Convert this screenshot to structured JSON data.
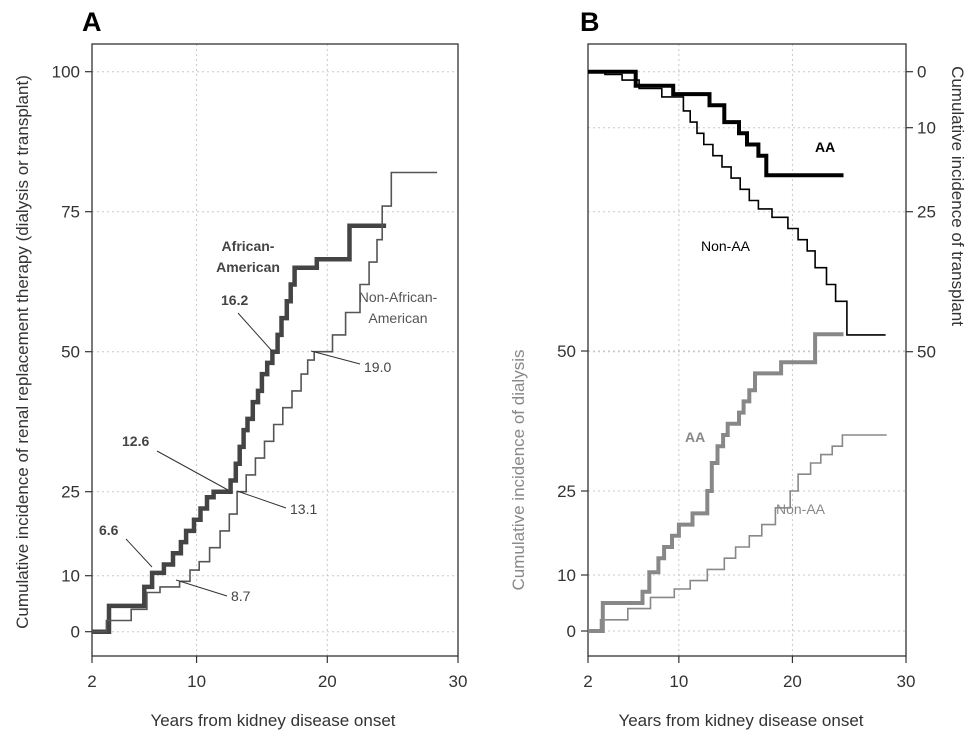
{
  "chart_data": [
    {
      "panel": "A",
      "type": "line",
      "step": true,
      "xlabel": "Years from kidney disease onset",
      "ylabel": "Cumulative incidence of renal replacement therapy (dialysis or transplant)",
      "xlim": [
        2,
        30
      ],
      "ylim": [
        -4,
        106
      ],
      "xticks": [
        2,
        10,
        20,
        30
      ],
      "yticks": [
        0,
        10,
        25,
        50,
        75,
        100
      ],
      "grid": true,
      "series": [
        {
          "name": "African-American",
          "color": "#444444",
          "values": [
            [
              2,
              0
            ],
            [
              3.3,
              0
            ],
            [
              3.3,
              4.6
            ],
            [
              6,
              4.6
            ],
            [
              6,
              8
            ],
            [
              6.6,
              8
            ],
            [
              6.6,
              10.5
            ],
            [
              7.5,
              10.5
            ],
            [
              7.5,
              12
            ],
            [
              8.2,
              12
            ],
            [
              8.2,
              14
            ],
            [
              8.8,
              14
            ],
            [
              8.8,
              16
            ],
            [
              9.2,
              16
            ],
            [
              9.2,
              18
            ],
            [
              9.8,
              18
            ],
            [
              9.8,
              20
            ],
            [
              10.3,
              20
            ],
            [
              10.3,
              22
            ],
            [
              10.8,
              22
            ],
            [
              10.8,
              24
            ],
            [
              11.3,
              24
            ],
            [
              11.3,
              25
            ],
            [
              12.6,
              25
            ],
            [
              12.6,
              27
            ],
            [
              13,
              27
            ],
            [
              13,
              30
            ],
            [
              13.3,
              30
            ],
            [
              13.3,
              33
            ],
            [
              13.6,
              33
            ],
            [
              13.6,
              36
            ],
            [
              13.9,
              36
            ],
            [
              13.9,
              38
            ],
            [
              14.3,
              38
            ],
            [
              14.3,
              41
            ],
            [
              14.7,
              41
            ],
            [
              14.7,
              43
            ],
            [
              15,
              43
            ],
            [
              15,
              46
            ],
            [
              15.4,
              46
            ],
            [
              15.4,
              48
            ],
            [
              15.8,
              48
            ],
            [
              15.8,
              50
            ],
            [
              16.2,
              50
            ],
            [
              16.2,
              53
            ],
            [
              16.5,
              53
            ],
            [
              16.5,
              56
            ],
            [
              16.9,
              56
            ],
            [
              16.9,
              59
            ],
            [
              17.2,
              59
            ],
            [
              17.2,
              62
            ],
            [
              17.5,
              62
            ],
            [
              17.5,
              65
            ],
            [
              19.2,
              65
            ],
            [
              19.2,
              66.5
            ],
            [
              21.7,
              66.5
            ],
            [
              21.7,
              72.5
            ],
            [
              24.5,
              72.5
            ]
          ]
        },
        {
          "name": "Non-African-American",
          "color": "#555555",
          "values": [
            [
              2,
              0
            ],
            [
              3.1,
              0
            ],
            [
              3.1,
              2
            ],
            [
              5,
              2
            ],
            [
              5,
              4
            ],
            [
              6.2,
              4
            ],
            [
              6.2,
              7
            ],
            [
              7.2,
              7
            ],
            [
              7.2,
              8
            ],
            [
              8.7,
              8
            ],
            [
              8.7,
              9
            ],
            [
              9.5,
              9
            ],
            [
              9.5,
              11
            ],
            [
              10.2,
              11
            ],
            [
              10.2,
              12.5
            ],
            [
              11,
              12.5
            ],
            [
              11,
              15
            ],
            [
              11.8,
              15
            ],
            [
              11.8,
              18
            ],
            [
              12.5,
              18
            ],
            [
              12.5,
              21
            ],
            [
              13.1,
              21
            ],
            [
              13.1,
              25
            ],
            [
              13.8,
              25
            ],
            [
              13.8,
              28
            ],
            [
              14.5,
              28
            ],
            [
              14.5,
              31
            ],
            [
              15.2,
              31
            ],
            [
              15.2,
              34
            ],
            [
              15.9,
              34
            ],
            [
              15.9,
              37
            ],
            [
              16.6,
              37
            ],
            [
              16.6,
              40
            ],
            [
              17.3,
              40
            ],
            [
              17.3,
              43
            ],
            [
              18,
              43
            ],
            [
              18,
              46
            ],
            [
              18.5,
              46
            ],
            [
              18.5,
              48.5
            ],
            [
              19,
              48.5
            ],
            [
              19,
              50
            ],
            [
              20.4,
              50
            ],
            [
              20.4,
              53
            ],
            [
              21.4,
              53
            ],
            [
              21.4,
              57
            ],
            [
              22.5,
              57
            ],
            [
              22.5,
              62
            ],
            [
              23.2,
              62
            ],
            [
              23.2,
              66
            ],
            [
              23.8,
              66
            ],
            [
              23.8,
              70
            ],
            [
              24.2,
              70
            ],
            [
              24.2,
              76
            ],
            [
              24.9,
              76
            ],
            [
              24.9,
              82
            ],
            [
              28.4,
              82
            ]
          ]
        }
      ],
      "annotations": [
        {
          "text": "6.6",
          "x": 6.6,
          "y": 10.5
        },
        {
          "text": "12.6",
          "x": 12.6,
          "y": 25
        },
        {
          "text": "16.2",
          "x": 16.2,
          "y": 50
        },
        {
          "text": "8.7",
          "x": 8.7,
          "y": 8
        },
        {
          "text": "13.1",
          "x": 13.1,
          "y": 25
        },
        {
          "text": "19.0",
          "x": 19.0,
          "y": 50
        }
      ],
      "legend_labels": [
        "African-",
        "American",
        "Non-African-",
        "American"
      ]
    },
    {
      "panel": "B",
      "type": "line",
      "step": true,
      "xlabel": "Years from kidney disease onset",
      "ylabel_left": "Cumulative incidence of dialysis",
      "ylabel_right": "Cumulative incidence of transplant",
      "xlim": [
        2,
        30
      ],
      "xticks": [
        2,
        10,
        20,
        30
      ],
      "yticks_left": [
        0,
        10,
        25,
        50
      ],
      "yticks_right": [
        0,
        10,
        25,
        50
      ],
      "grid": true,
      "dialysis_series": [
        {
          "name": "AA",
          "color": "#888888",
          "values": [
            [
              2,
              0
            ],
            [
              3.3,
              0
            ],
            [
              3.3,
              5
            ],
            [
              6.8,
              5
            ],
            [
              6.8,
              7
            ],
            [
              7.4,
              7
            ],
            [
              7.4,
              10.5
            ],
            [
              8.2,
              10.5
            ],
            [
              8.2,
              13
            ],
            [
              8.7,
              13
            ],
            [
              8.7,
              15
            ],
            [
              9.4,
              15
            ],
            [
              9.4,
              17
            ],
            [
              10,
              17
            ],
            [
              10,
              19
            ],
            [
              11.2,
              19
            ],
            [
              11.2,
              21
            ],
            [
              12.5,
              21
            ],
            [
              12.5,
              25
            ],
            [
              12.9,
              25
            ],
            [
              12.9,
              30
            ],
            [
              13.4,
              30
            ],
            [
              13.4,
              33
            ],
            [
              13.9,
              33
            ],
            [
              13.9,
              35
            ],
            [
              14.3,
              35
            ],
            [
              14.3,
              37
            ],
            [
              15.3,
              37
            ],
            [
              15.3,
              39
            ],
            [
              15.7,
              39
            ],
            [
              15.7,
              41
            ],
            [
              16.2,
              41
            ],
            [
              16.2,
              43
            ],
            [
              16.7,
              43
            ],
            [
              16.7,
              46
            ],
            [
              19,
              46
            ],
            [
              19,
              48
            ],
            [
              22,
              48
            ],
            [
              22,
              53
            ],
            [
              24.5,
              53
            ]
          ]
        },
        {
          "name": "Non-AA",
          "color": "#888888",
          "values": [
            [
              2,
              0
            ],
            [
              3.1,
              0
            ],
            [
              3.1,
              2
            ],
            [
              5.5,
              2
            ],
            [
              5.5,
              4
            ],
            [
              7.5,
              4
            ],
            [
              7.5,
              6
            ],
            [
              9.6,
              6
            ],
            [
              9.6,
              7.5
            ],
            [
              11,
              7.5
            ],
            [
              11,
              9
            ],
            [
              12.5,
              9
            ],
            [
              12.5,
              11
            ],
            [
              14,
              11
            ],
            [
              14,
              13
            ],
            [
              15,
              13
            ],
            [
              15,
              15
            ],
            [
              16.2,
              15
            ],
            [
              16.2,
              17
            ],
            [
              17.3,
              17
            ],
            [
              17.3,
              19
            ],
            [
              18.5,
              19
            ],
            [
              18.5,
              22
            ],
            [
              19.8,
              22
            ],
            [
              19.8,
              25
            ],
            [
              20.5,
              25
            ],
            [
              20.5,
              28
            ],
            [
              21.6,
              28
            ],
            [
              21.6,
              30
            ],
            [
              22.5,
              30
            ],
            [
              22.5,
              31.5
            ],
            [
              23.5,
              31.5
            ],
            [
              23.5,
              33
            ],
            [
              24.4,
              33
            ],
            [
              24.4,
              35
            ],
            [
              28.3,
              35
            ]
          ]
        }
      ],
      "transplant_series": [
        {
          "name": "AA",
          "color": "#000000",
          "values": [
            [
              2,
              0
            ],
            [
              6.2,
              0
            ],
            [
              6.2,
              2.5
            ],
            [
              9.5,
              2.5
            ],
            [
              9.5,
              4
            ],
            [
              12.7,
              4
            ],
            [
              12.7,
              6
            ],
            [
              14,
              6
            ],
            [
              14,
              9
            ],
            [
              15.3,
              9
            ],
            [
              15.3,
              11
            ],
            [
              16,
              11
            ],
            [
              16,
              13
            ],
            [
              17,
              13
            ],
            [
              17,
              15
            ],
            [
              17.7,
              15
            ],
            [
              17.7,
              18.5
            ],
            [
              24.5,
              18.5
            ]
          ]
        },
        {
          "name": "Non-AA",
          "color": "#000000",
          "values": [
            [
              2,
              0
            ],
            [
              3.5,
              0
            ],
            [
              3.5,
              0.5
            ],
            [
              5,
              0.5
            ],
            [
              5,
              1.5
            ],
            [
              6.5,
              1.5
            ],
            [
              6.5,
              3
            ],
            [
              8.5,
              3
            ],
            [
              8.5,
              4.5
            ],
            [
              10.4,
              4.5
            ],
            [
              10.4,
              7
            ],
            [
              11,
              7
            ],
            [
              11,
              9
            ],
            [
              11.6,
              9
            ],
            [
              11.6,
              11
            ],
            [
              12.2,
              11
            ],
            [
              12.2,
              13
            ],
            [
              13,
              13
            ],
            [
              13,
              15
            ],
            [
              13.8,
              15
            ],
            [
              13.8,
              17
            ],
            [
              14.6,
              17
            ],
            [
              14.6,
              19
            ],
            [
              15.4,
              19
            ],
            [
              15.4,
              21
            ],
            [
              16.2,
              21
            ],
            [
              16.2,
              23
            ],
            [
              17,
              23
            ],
            [
              17,
              24.5
            ],
            [
              18.2,
              24.5
            ],
            [
              18.2,
              26
            ],
            [
              19.6,
              26
            ],
            [
              19.6,
              28
            ],
            [
              20.5,
              28
            ],
            [
              20.5,
              30
            ],
            [
              21.3,
              30
            ],
            [
              21.3,
              32
            ],
            [
              22,
              32
            ],
            [
              22,
              35
            ],
            [
              23,
              35
            ],
            [
              23,
              38
            ],
            [
              23.8,
              38
            ],
            [
              23.8,
              41
            ],
            [
              24.8,
              41
            ],
            [
              24.8,
              47
            ],
            [
              28.2,
              47
            ]
          ]
        }
      ],
      "labels": [
        "AA",
        "Non-AA",
        "AA",
        "Non-AA"
      ]
    }
  ]
}
